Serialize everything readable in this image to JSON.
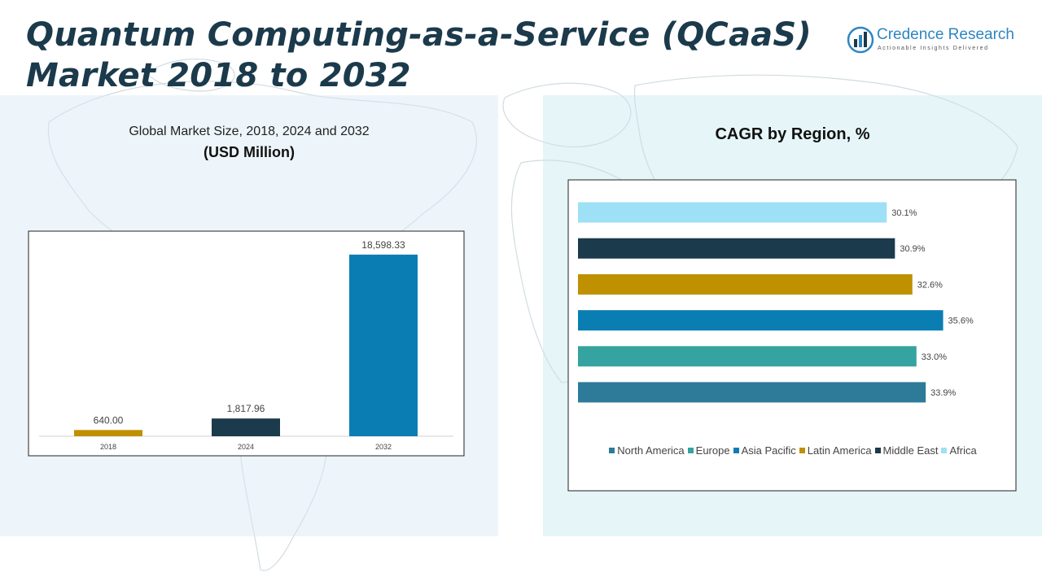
{
  "header": {
    "title_line1": "Quantum Computing-as-a-Service (QCaaS)",
    "title_line2": "Market 2018 to 2032"
  },
  "logo": {
    "name": "Credence Research",
    "tagline": "Actionable Insights Delivered",
    "icon": "credence-logo-icon"
  },
  "left_panel": {
    "subtitle": "Global Market Size, 2018, 2024 and 2032",
    "unit": "(USD Million)"
  },
  "right_panel": {
    "title": "CAGR by Region, %"
  },
  "colors": {
    "north_america": "#2e7a99",
    "europe": "#35a3a0",
    "asia_pacific": "#0a7eb3",
    "latin_america": "#bf9000",
    "middle_east": "#1b3a4b",
    "africa": "#9ee0f5"
  },
  "chart_data": [
    {
      "type": "bar",
      "title": "Global Market Size, 2018, 2024 and 2032",
      "ylabel": "(USD Million)",
      "xlabel": "",
      "categories": [
        "2018",
        "2024",
        "2032"
      ],
      "values": [
        640.0,
        1817.96,
        18598.33
      ],
      "value_labels": [
        "640.00",
        "1,817.96",
        "18,598.33"
      ],
      "colors": [
        "#bf9000",
        "#1b3a4b",
        "#0a7eb3"
      ],
      "ylim": [
        0,
        20000
      ],
      "grid": false
    },
    {
      "type": "bar",
      "orientation": "horizontal",
      "title": "CAGR by Region, %",
      "categories": [
        "North America",
        "Europe",
        "Asia Pacific",
        "Latin America",
        "Middle East",
        "Africa"
      ],
      "values": [
        33.9,
        33.0,
        35.6,
        32.6,
        30.9,
        30.1
      ],
      "value_labels": [
        "33.9%",
        "33.0%",
        "35.6%",
        "32.6%",
        "30.9%",
        "30.1%"
      ],
      "colors": [
        "#2e7a99",
        "#35a3a0",
        "#0a7eb3",
        "#bf9000",
        "#1b3a4b",
        "#9ee0f5"
      ],
      "xlim": [
        0,
        36
      ],
      "grid": false,
      "legend_position": "bottom"
    }
  ]
}
